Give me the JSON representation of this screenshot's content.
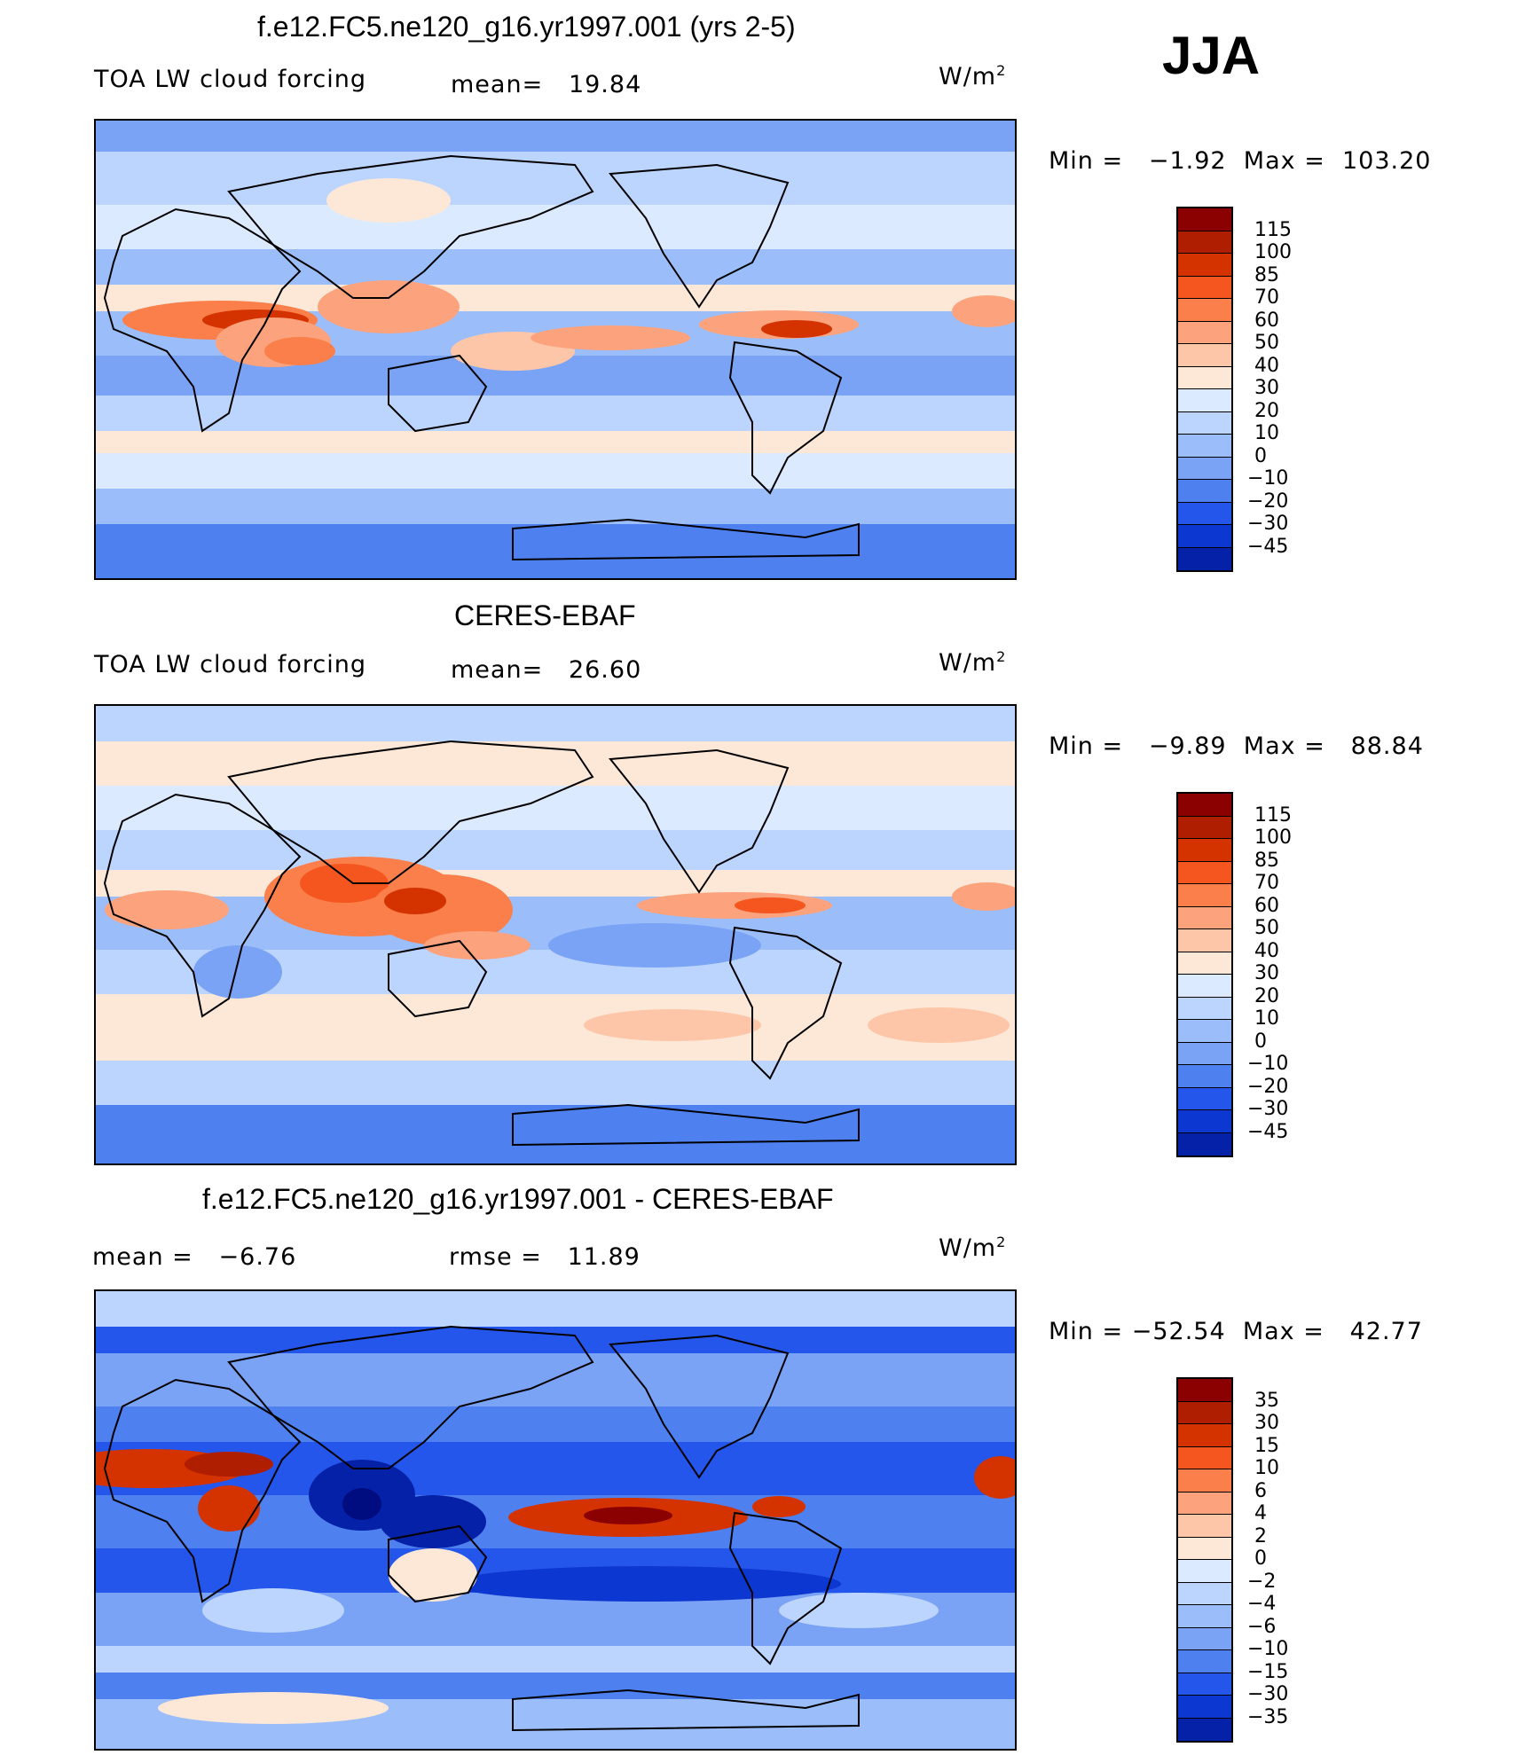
{
  "season": "JJA",
  "panels": [
    {
      "title": "f.e12.FC5.ne120_g16.yr1997.001 (yrs 2-5)",
      "left_label": "TOA LW cloud forcing",
      "stat1_label": "mean=",
      "stat1_value": "19.84",
      "units": "W/m",
      "units_exp": "2",
      "minmax_min_label": "Min =",
      "min_value": "−1.92",
      "minmax_max_label": "Max =",
      "max_value": "103.20",
      "colorbar_ticks": [
        "115",
        "100",
        "85",
        "70",
        "60",
        "50",
        "40",
        "30",
        "20",
        "10",
        "0",
        "−10",
        "−20",
        "−30",
        "−45"
      ]
    },
    {
      "title": "CERES-EBAF",
      "left_label": "TOA LW cloud forcing",
      "stat1_label": "mean=",
      "stat1_value": "26.60",
      "units": "W/m",
      "units_exp": "2",
      "minmax_min_label": "Min =",
      "min_value": "−9.89",
      "minmax_max_label": "Max =",
      "max_value": "88.84",
      "colorbar_ticks": [
        "115",
        "100",
        "85",
        "70",
        "60",
        "50",
        "40",
        "30",
        "20",
        "10",
        "0",
        "−10",
        "−20",
        "−30",
        "−45"
      ]
    },
    {
      "title": "f.e12.FC5.ne120_g16.yr1997.001 - CERES-EBAF",
      "left_label": "mean =",
      "left_value": "−6.76",
      "stat1_label": "rmse =",
      "stat1_value": "11.89",
      "units": "W/m",
      "units_exp": "2",
      "minmax_min_label": "Min =",
      "min_value": "−52.54",
      "minmax_max_label": "Max =",
      "max_value": "42.77",
      "colorbar_ticks": [
        "35",
        "30",
        "15",
        "10",
        "6",
        "4",
        "2",
        "0",
        "−2",
        "−4",
        "−6",
        "−10",
        "−15",
        "−30",
        "−35"
      ]
    }
  ],
  "colors": {
    "palette": [
      "#8b0000",
      "#b01e00",
      "#d43300",
      "#f5561f",
      "#fa7f4a",
      "#fca27c",
      "#fdc6a8",
      "#fde8d7",
      "#dbeaff",
      "#bcd5ff",
      "#9bbefa",
      "#7aa2f5",
      "#4f80f0",
      "#2556eb",
      "#0d37d1",
      "#0521a8",
      "#000d80"
    ],
    "ocean_default": "#9bbefa"
  }
}
